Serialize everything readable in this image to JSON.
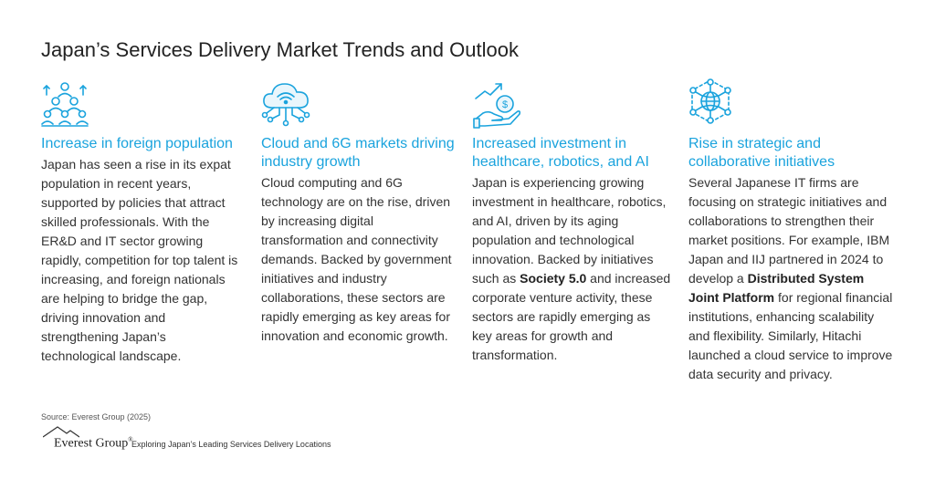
{
  "title": "Japan’s Services Delivery Market Trends and Outlook",
  "colors": {
    "accent": "#1aa3dd",
    "text": "#333333"
  },
  "columns": [
    {
      "icon": "population-growth-icon",
      "heading": "Increase in foreign population",
      "body": [
        {
          "t": "Japan has seen a rise in its expat population in recent years, supported by policies that attract skilled professionals. With the ER&D and IT sector growing rapidly, competition for top talent is increasing, and foreign nationals are helping to bridge the gap, driving innovation and strengthening Japan’s technological landscape."
        }
      ]
    },
    {
      "icon": "cloud-network-icon",
      "heading": "Cloud and 6G markets driving industry growth",
      "body": [
        {
          "t": "Cloud computing and 6G technology are on the rise, driven by increasing digital transformation and connectivity demands. Backed by government initiatives and industry collaborations, these sectors are rapidly emerging as key areas for innovation and economic growth."
        }
      ]
    },
    {
      "icon": "investment-growth-icon",
      "heading": "Increased investment in healthcare, robotics, and AI",
      "body": [
        {
          "t": "Japan is experiencing growing investment in healthcare, robotics, and AI, driven by its aging population and technological innovation. Backed by initiatives such as "
        },
        {
          "t": "Society 5.0",
          "b": true
        },
        {
          "t": " and increased corporate venture activity, these sectors are rapidly emerging as key areas for growth and transformation."
        }
      ]
    },
    {
      "icon": "global-network-icon",
      "heading": "Rise in strategic and collaborative initiatives",
      "body": [
        {
          "t": "Several Japanese IT firms are focusing on strategic initiatives and collaborations to strengthen their market positions. For example, IBM Japan and IIJ partnered in 2024 to develop a "
        },
        {
          "t": "Distributed System Joint Platform",
          "b": true
        },
        {
          "t": " for regional financial institutions, enhancing scalability and flexibility. Similarly, Hitachi launched a cloud service to improve data security and privacy."
        }
      ]
    }
  ],
  "source": "Source: Everest Group (2025)",
  "footer": {
    "logo_text": "Everest Group",
    "logo_reg": "®",
    "caption": "Exploring Japan’s Leading Services Delivery Locations"
  }
}
